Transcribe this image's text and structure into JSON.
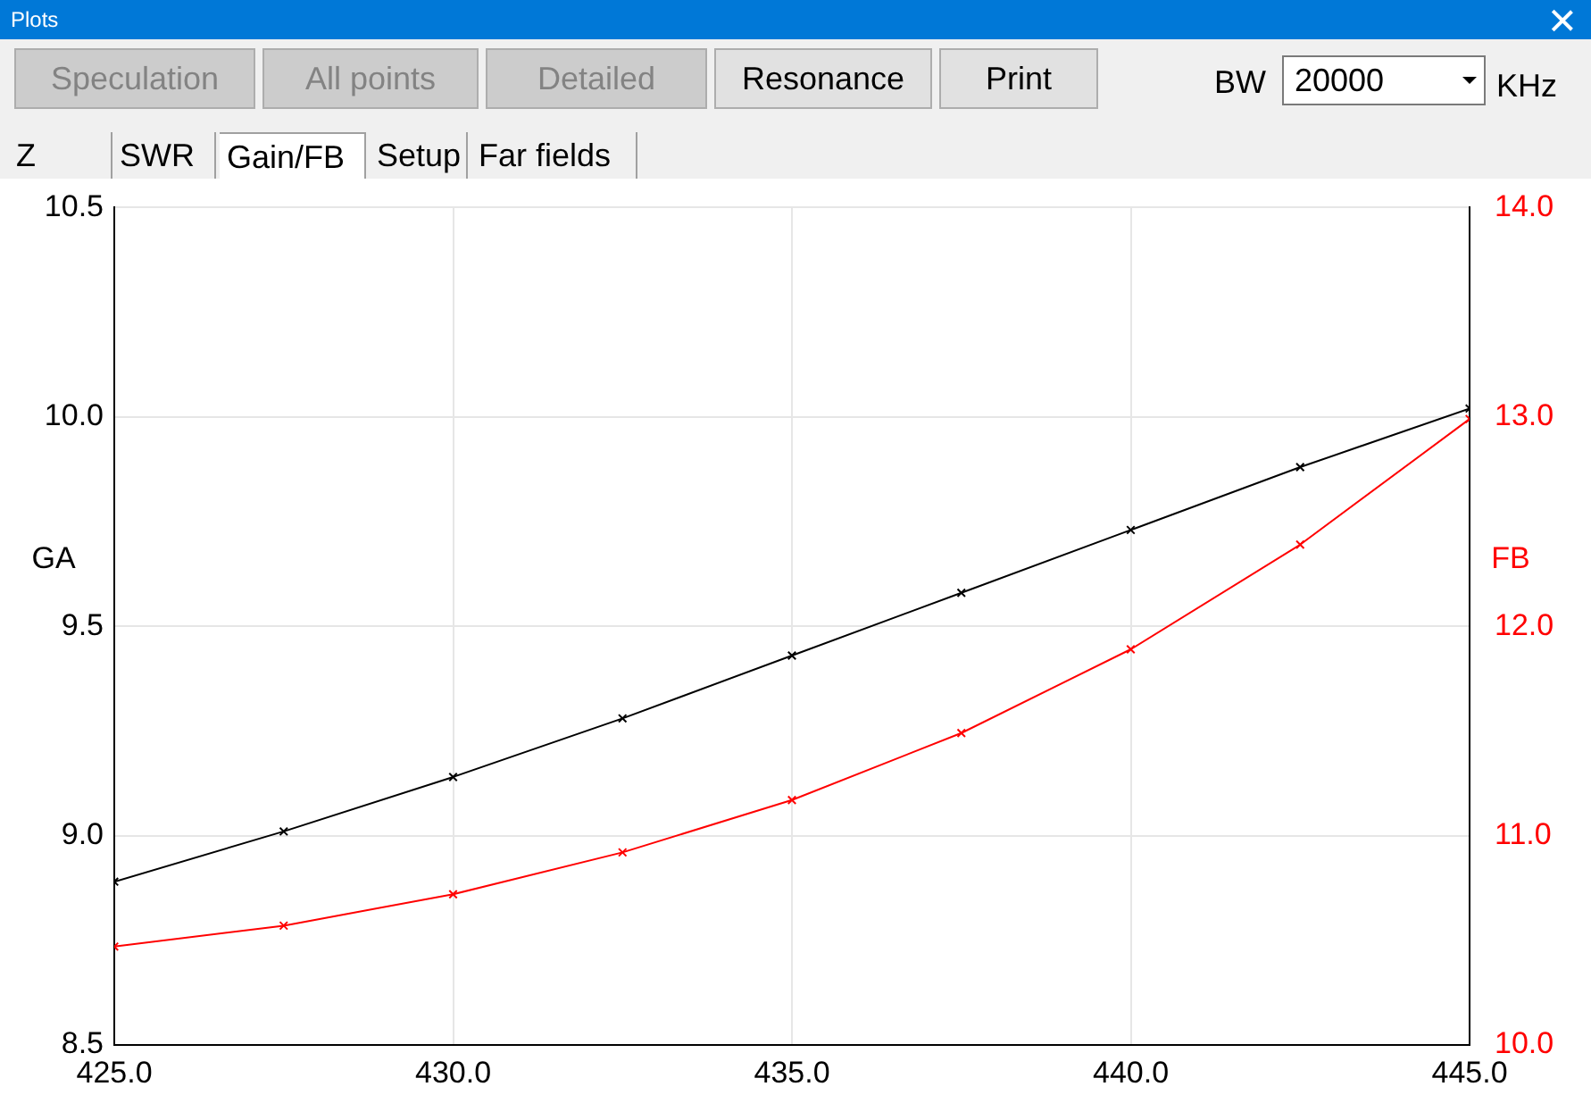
{
  "chart_data": {
    "type": "line",
    "title": "Plots",
    "annotations": [
      "Speculation",
      "All points",
      "Detailed",
      "Resonance",
      "Print",
      "BW",
      "20000",
      "KHz",
      "Z",
      "SWR",
      "Gain/FB",
      "Setup",
      "Far fields"
    ],
    "x": [
      425,
      427.5,
      430,
      432.5,
      435,
      437.5,
      440,
      442.5,
      445
    ],
    "series": [
      {
        "color": "#000000",
        "values": [
          8.89,
          9.01,
          9.14,
          9.28,
          9.43,
          9.58,
          9.73,
          9.88,
          10.02
        ]
      },
      {
        "color": "#ff0000",
        "axis": "y2",
        "values": [
          10.47,
          10.57,
          10.72,
          10.92,
          11.17,
          11.49,
          11.89,
          12.39,
          12.99
        ]
      }
    ],
    "xlim": [
      425,
      445
    ],
    "xticks": [
      {
        "value": 425,
        "label": "425.0"
      },
      {
        "value": 430,
        "label": "430.0"
      },
      {
        "value": 435,
        "label": "435.0"
      },
      {
        "value": 440,
        "label": "440.0"
      },
      {
        "value": 445,
        "label": "445.0"
      }
    ],
    "ylim": [
      8.5,
      10.5
    ],
    "yticks": [
      {
        "value": 8.5,
        "label": "8.5"
      },
      {
        "value": 9,
        "label": "9.0"
      },
      {
        "value": 9.5,
        "label": "9.5"
      },
      {
        "value": 10,
        "label": "10.0"
      },
      {
        "value": 10.5,
        "label": "10.5"
      }
    ],
    "y2lim": [
      10,
      14
    ],
    "y2ticks": [
      {
        "value": 10,
        "label": "10.0"
      },
      {
        "value": 11,
        "label": "11.0"
      },
      {
        "value": 12,
        "label": "12.0"
      },
      {
        "value": 13,
        "label": "13.0"
      },
      {
        "value": 14,
        "label": "14.0"
      }
    ],
    "ylabel": "GA",
    "y2label": "FB",
    "grid": true,
    "legend": false,
    "marker": "cross",
    "line_style": "solid"
  }
}
